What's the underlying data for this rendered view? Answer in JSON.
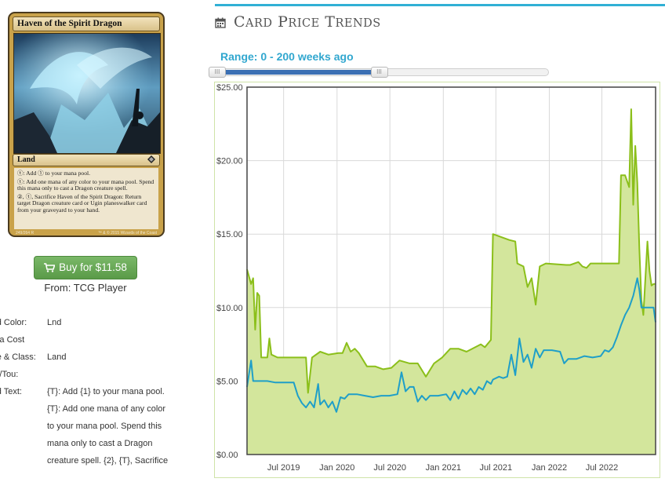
{
  "card": {
    "name": "Haven of the Spirit Dragon",
    "type_line": "Land",
    "rules_text": [
      "ⓣ: Add ① to your mana pool.",
      "ⓣ: Add one mana of any color to your mana pool. Spend this mana only to cast a Dragon creature spell.",
      "②, ⓣ, Sacrifice Haven of the Spirit Dragon: Return target Dragon creature card or Ugin planeswalker card from your graveyard to your hand."
    ],
    "collector_number": "249/264 R",
    "copyright": "™ & © 2015 Wizards of the Coast"
  },
  "purchase": {
    "buy_label": "Buy for $11.58",
    "from_label": "From: TCG Player"
  },
  "attributes": {
    "card_color_key": "Card Color:",
    "card_color_value": "Lnd",
    "mana_cost_key": "Mana Cost",
    "mana_cost_value": "",
    "type_class_key": "Type & Class:",
    "type_class_value": "Land",
    "pow_tou_key": "Pow/Tou:",
    "pow_tou_value": "",
    "card_text_key": "Card Text:",
    "card_text_lines": [
      "{T}: Add {1} to your mana pool.",
      "{T}: Add one mana of any color",
      "to your mana pool. Spend this",
      "mana only to cast a Dragon",
      "creature spell. {2}, {T}, Sacrifice"
    ]
  },
  "section": {
    "title": "Card Price Trends",
    "icon": "calendar-icon"
  },
  "range": {
    "label": "Range: 0 - 200 weeks ago",
    "start_fraction": 0.0,
    "end_fraction": 0.5
  },
  "colors": {
    "accent": "#31b0d5",
    "paper_series": "#8bbf1a",
    "paper_fill": "#d3e69c",
    "online_series": "#1f9fc8",
    "buy_button": "#5cb85c"
  },
  "chart_data": {
    "type": "line",
    "title": "",
    "xlabel": "",
    "ylabel": "",
    "ylim": [
      0,
      25
    ],
    "xlim": [
      "2019-02-25",
      "2023-01-02"
    ],
    "y_ticks": [
      "$0.00",
      "$5.00",
      "$10.00",
      "$15.00",
      "$20.00",
      "$25.00"
    ],
    "y_tick_values": [
      0,
      5,
      10,
      15,
      20,
      25
    ],
    "x_ticks": [
      "Jul 2019",
      "Jan 2020",
      "Jul 2020",
      "Jan 2021",
      "Jul 2021",
      "Jan 2022",
      "Jul 2022"
    ],
    "x_tick_dates": [
      "2019-07-01",
      "2020-01-01",
      "2020-07-01",
      "2021-01-01",
      "2021-07-01",
      "2022-01-01",
      "2022-07-01"
    ],
    "grid": true,
    "legend": "none",
    "series": [
      {
        "style": "line-filled",
        "color": "#8bbf1a",
        "fill": "#d3e69c",
        "points": [
          [
            "2019-02-25",
            12.6
          ],
          [
            "2019-03-04",
            12.1
          ],
          [
            "2019-03-11",
            11.6
          ],
          [
            "2019-03-18",
            12.0
          ],
          [
            "2019-03-25",
            8.5
          ],
          [
            "2019-04-01",
            11.0
          ],
          [
            "2019-04-08",
            10.8
          ],
          [
            "2019-04-15",
            6.6
          ],
          [
            "2019-05-06",
            6.6
          ],
          [
            "2019-05-13",
            7.9
          ],
          [
            "2019-05-20",
            6.8
          ],
          [
            "2019-06-10",
            6.6
          ],
          [
            "2019-09-16",
            6.6
          ],
          [
            "2019-09-23",
            4.2
          ],
          [
            "2019-10-07",
            6.6
          ],
          [
            "2019-11-04",
            7.0
          ],
          [
            "2019-12-02",
            6.8
          ],
          [
            "2020-01-06",
            6.9
          ],
          [
            "2020-01-20",
            6.9
          ],
          [
            "2020-02-03",
            7.6
          ],
          [
            "2020-02-17",
            7.0
          ],
          [
            "2020-03-02",
            7.2
          ],
          [
            "2020-03-16",
            6.9
          ],
          [
            "2020-04-13",
            6.0
          ],
          [
            "2020-05-11",
            6.0
          ],
          [
            "2020-06-08",
            5.8
          ],
          [
            "2020-07-06",
            5.9
          ],
          [
            "2020-08-03",
            6.4
          ],
          [
            "2020-09-07",
            6.2
          ],
          [
            "2020-10-05",
            6.2
          ],
          [
            "2020-11-02",
            5.3
          ],
          [
            "2020-11-30",
            6.2
          ],
          [
            "2020-12-28",
            6.6
          ],
          [
            "2021-01-25",
            7.2
          ],
          [
            "2021-02-22",
            7.2
          ],
          [
            "2021-03-22",
            7.0
          ],
          [
            "2021-05-10",
            7.5
          ],
          [
            "2021-05-24",
            7.3
          ],
          [
            "2021-06-14",
            7.8
          ],
          [
            "2021-06-21",
            15.0
          ],
          [
            "2021-07-19",
            14.8
          ],
          [
            "2021-08-16",
            14.6
          ],
          [
            "2021-09-06",
            14.5
          ],
          [
            "2021-09-13",
            13.0
          ],
          [
            "2021-10-04",
            12.8
          ],
          [
            "2021-10-18",
            11.4
          ],
          [
            "2021-11-01",
            12.0
          ],
          [
            "2021-11-15",
            10.2
          ],
          [
            "2021-11-29",
            12.8
          ],
          [
            "2021-12-20",
            13.0
          ],
          [
            "2022-02-28",
            12.9
          ],
          [
            "2022-03-14",
            12.9
          ],
          [
            "2022-04-11",
            13.1
          ],
          [
            "2022-04-25",
            12.8
          ],
          [
            "2022-05-09",
            12.7
          ],
          [
            "2022-05-23",
            13.0
          ],
          [
            "2022-08-29",
            13.0
          ],
          [
            "2022-09-05",
            19.0
          ],
          [
            "2022-09-19",
            19.0
          ],
          [
            "2022-10-03",
            18.2
          ],
          [
            "2022-10-10",
            23.5
          ],
          [
            "2022-10-17",
            17.0
          ],
          [
            "2022-10-24",
            21.0
          ],
          [
            "2022-10-31",
            18.5
          ],
          [
            "2022-11-07",
            14.0
          ],
          [
            "2022-11-14",
            10.5
          ],
          [
            "2022-11-21",
            9.5
          ],
          [
            "2022-11-28",
            12.0
          ],
          [
            "2022-12-05",
            14.5
          ],
          [
            "2022-12-12",
            12.5
          ],
          [
            "2022-12-19",
            11.5
          ],
          [
            "2022-12-26",
            11.6
          ],
          [
            "2023-01-02",
            11.6
          ]
        ]
      },
      {
        "style": "line",
        "color": "#1f9fc8",
        "points": [
          [
            "2019-02-25",
            4.6
          ],
          [
            "2019-03-04",
            5.5
          ],
          [
            "2019-03-11",
            6.4
          ],
          [
            "2019-03-18",
            5.0
          ],
          [
            "2019-05-06",
            5.0
          ],
          [
            "2019-06-03",
            4.9
          ],
          [
            "2019-07-01",
            4.9
          ],
          [
            "2019-08-05",
            4.9
          ],
          [
            "2019-08-19",
            4.0
          ],
          [
            "2019-09-02",
            3.5
          ],
          [
            "2019-09-16",
            3.2
          ],
          [
            "2019-09-30",
            3.6
          ],
          [
            "2019-10-14",
            3.2
          ],
          [
            "2019-10-28",
            4.8
          ],
          [
            "2019-11-04",
            3.4
          ],
          [
            "2019-11-18",
            3.7
          ],
          [
            "2019-12-02",
            3.2
          ],
          [
            "2019-12-16",
            3.6
          ],
          [
            "2019-12-30",
            2.9
          ],
          [
            "2020-01-13",
            3.9
          ],
          [
            "2020-01-27",
            3.8
          ],
          [
            "2020-02-10",
            4.1
          ],
          [
            "2020-03-09",
            4.1
          ],
          [
            "2020-04-06",
            4.0
          ],
          [
            "2020-05-04",
            3.9
          ],
          [
            "2020-06-01",
            4.0
          ],
          [
            "2020-06-29",
            4.0
          ],
          [
            "2020-07-27",
            4.1
          ],
          [
            "2020-08-10",
            5.6
          ],
          [
            "2020-08-24",
            4.3
          ],
          [
            "2020-09-07",
            4.6
          ],
          [
            "2020-09-21",
            4.6
          ],
          [
            "2020-10-05",
            3.6
          ],
          [
            "2020-10-19",
            4.0
          ],
          [
            "2020-11-02",
            3.7
          ],
          [
            "2020-11-16",
            4.0
          ],
          [
            "2020-12-14",
            4.0
          ],
          [
            "2021-01-11",
            4.1
          ],
          [
            "2021-01-25",
            3.7
          ],
          [
            "2021-02-08",
            4.3
          ],
          [
            "2021-02-22",
            3.8
          ],
          [
            "2021-03-08",
            4.4
          ],
          [
            "2021-03-22",
            4.1
          ],
          [
            "2021-04-05",
            4.5
          ],
          [
            "2021-04-19",
            4.1
          ],
          [
            "2021-05-03",
            4.6
          ],
          [
            "2021-05-17",
            4.4
          ],
          [
            "2021-05-31",
            5.0
          ],
          [
            "2021-06-14",
            4.8
          ],
          [
            "2021-06-21",
            5.1
          ],
          [
            "2021-07-12",
            5.3
          ],
          [
            "2021-07-26",
            5.2
          ],
          [
            "2021-08-09",
            5.3
          ],
          [
            "2021-08-23",
            6.8
          ],
          [
            "2021-09-06",
            5.4
          ],
          [
            "2021-09-20",
            7.9
          ],
          [
            "2021-10-04",
            6.3
          ],
          [
            "2021-10-18",
            6.8
          ],
          [
            "2021-11-01",
            5.9
          ],
          [
            "2021-11-15",
            7.2
          ],
          [
            "2021-11-29",
            6.6
          ],
          [
            "2021-12-13",
            7.1
          ],
          [
            "2022-01-10",
            7.1
          ],
          [
            "2022-02-07",
            7.0
          ],
          [
            "2022-02-21",
            6.2
          ],
          [
            "2022-03-07",
            6.5
          ],
          [
            "2022-04-04",
            6.5
          ],
          [
            "2022-05-02",
            6.7
          ],
          [
            "2022-05-30",
            6.6
          ],
          [
            "2022-06-27",
            6.7
          ],
          [
            "2022-07-11",
            7.1
          ],
          [
            "2022-07-25",
            7.0
          ],
          [
            "2022-08-08",
            7.3
          ],
          [
            "2022-08-22",
            8.0
          ],
          [
            "2022-09-05",
            8.8
          ],
          [
            "2022-09-19",
            9.5
          ],
          [
            "2022-10-03",
            10.0
          ],
          [
            "2022-10-17",
            10.8
          ],
          [
            "2022-10-31",
            12.0
          ],
          [
            "2022-11-07",
            11.2
          ],
          [
            "2022-11-14",
            10.0
          ],
          [
            "2022-12-05",
            10.0
          ],
          [
            "2022-12-26",
            10.0
          ],
          [
            "2023-01-02",
            9.0
          ]
        ]
      }
    ]
  }
}
